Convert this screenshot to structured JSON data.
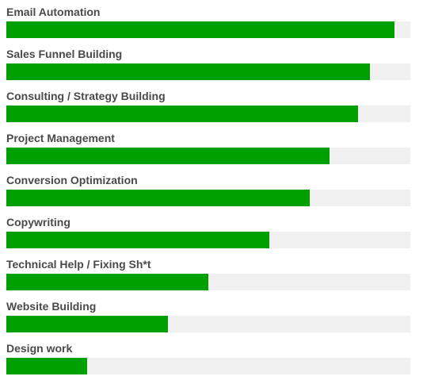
{
  "colors": {
    "fill": "#00a000",
    "track": "#f0f0f0",
    "label": "#4a4a4a"
  },
  "skills": [
    {
      "label": "Email Automation",
      "level": 0.96
    },
    {
      "label": "Sales Funnel Building",
      "level": 0.9
    },
    {
      "label": "Consulting / Strategy Building",
      "level": 0.87
    },
    {
      "label": "Project Management",
      "level": 0.8
    },
    {
      "label": "Conversion Optimization",
      "level": 0.75
    },
    {
      "label": "Copywriting",
      "level": 0.65
    },
    {
      "label": "Technical Help / Fixing Sh*t",
      "level": 0.5
    },
    {
      "label": "Website Building",
      "level": 0.4
    },
    {
      "label": "Design work",
      "level": 0.2
    }
  ]
}
